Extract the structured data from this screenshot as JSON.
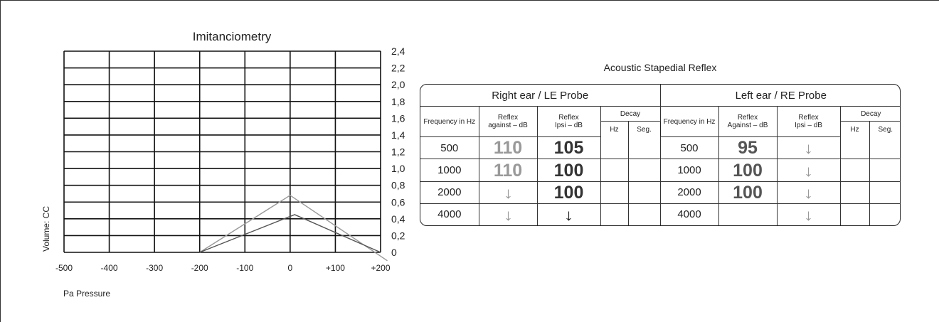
{
  "chart_data": [
    {
      "type": "line",
      "title": "Imitanciometry",
      "xlabel": "Pa Pressure",
      "ylabel": "Volume: CC",
      "x_ticks": [
        "-500",
        "-400",
        "-300",
        "-200",
        "-100",
        "0",
        "+100",
        "+200"
      ],
      "x_tick_values": [
        -500,
        -400,
        -300,
        -200,
        -100,
        0,
        100,
        200
      ],
      "y_ticks": [
        "0",
        "0,2",
        "0,4",
        "0,6",
        "0,8",
        "1,0",
        "1,2",
        "1,4",
        "1,6",
        "1,8",
        "2,0",
        "2,2",
        "2,4"
      ],
      "y_tick_values": [
        0,
        0.2,
        0.4,
        0.6,
        0.8,
        1.0,
        1.2,
        1.4,
        1.6,
        1.8,
        2.0,
        2.2,
        2.4
      ],
      "xlim": [
        -500,
        200
      ],
      "ylim": [
        0,
        2.4
      ],
      "grid": true,
      "series": [
        {
          "color": "#999999",
          "x": [
            -200,
            0,
            215
          ],
          "y": [
            0,
            0.68,
            -0.1
          ]
        },
        {
          "color": "#555555",
          "x": [
            -200,
            10,
            200
          ],
          "y": [
            0,
            0.45,
            0
          ]
        }
      ]
    },
    {
      "type": "table",
      "title": "Acoustic Stapedial Reflex",
      "groups": [
        {
          "label": "Right ear / LE Probe",
          "headers": {
            "frequency": "Frequency in Hz",
            "against_1": "Reflex",
            "against_2": "against – dB",
            "ipsi_1": "Reflex",
            "ipsi_2": "Ipsi – dB",
            "decay": "Decay",
            "hz": "Hz",
            "seg": "Seg."
          },
          "rows": [
            {
              "frequency": "500",
              "against": "110",
              "ipsi": "105"
            },
            {
              "frequency": "1000",
              "against": "110",
              "ipsi": "100"
            },
            {
              "frequency": "2000",
              "against": "down-arrow",
              "ipsi": "100"
            },
            {
              "frequency": "4000",
              "against": "down-arrow",
              "ipsi": "down-arrow"
            }
          ]
        },
        {
          "label": "Left ear / RE Probe",
          "headers": {
            "frequency": "Frequency in Hz",
            "against_1": "Reflex",
            "against_2": "Against – dB",
            "ipsi_1": "Reflex",
            "ipsi_2": "Ipsi – dB",
            "decay": "Decay",
            "hz": "Hz",
            "seg": "Seg."
          },
          "rows": [
            {
              "frequency": "500",
              "against": "95",
              "ipsi": "down-arrow"
            },
            {
              "frequency": "1000",
              "against": "100",
              "ipsi": "down-arrow"
            },
            {
              "frequency": "2000",
              "against": "100",
              "ipsi": "down-arrow"
            },
            {
              "frequency": "4000",
              "against": "",
              "ipsi": "down-arrow"
            }
          ]
        }
      ],
      "colors": {
        "right_against": "#999999",
        "right_ipsi": "#333333",
        "left_values": "#555555",
        "left_arrows": "#999999",
        "right_arrows_against": "#999999",
        "right_arrows_ipsi": "#222222"
      }
    }
  ]
}
